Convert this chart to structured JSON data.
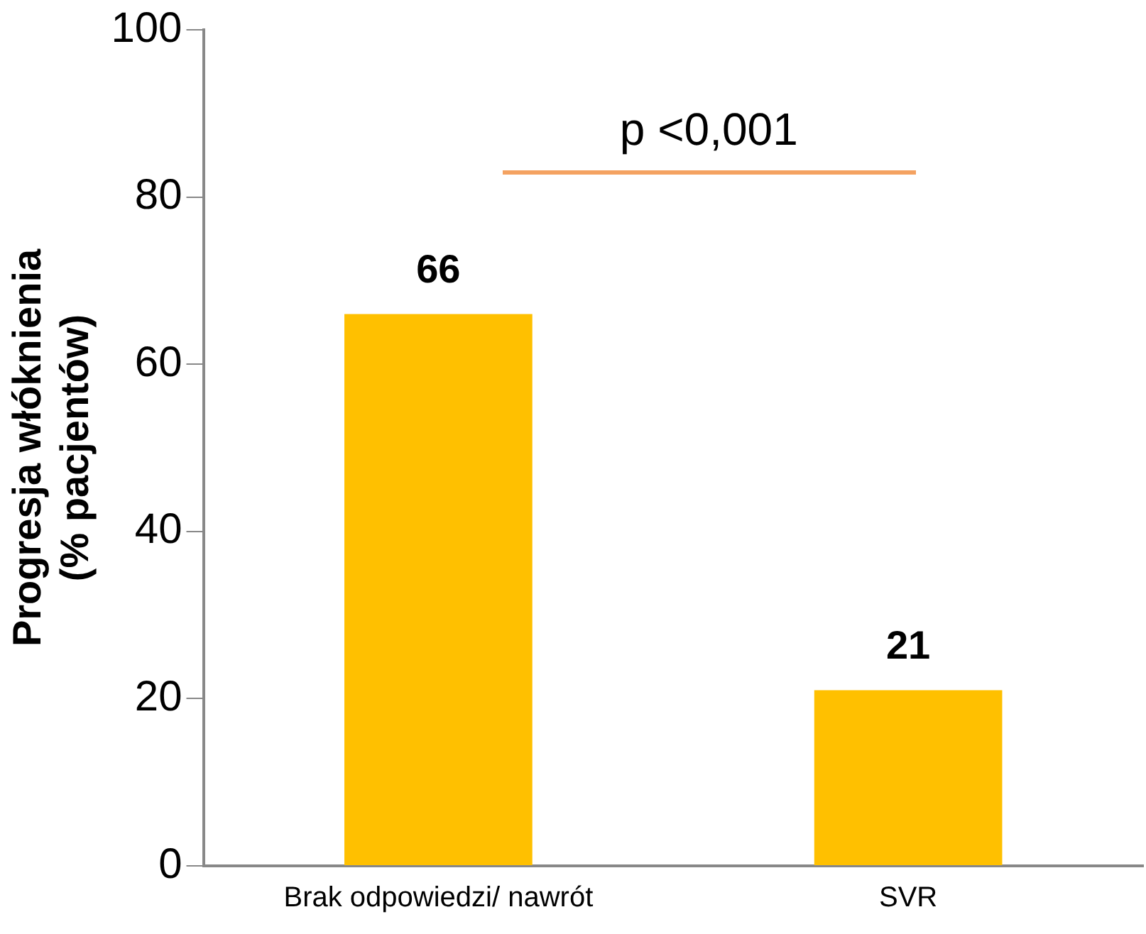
{
  "chart_data": {
    "type": "bar",
    "ylabel": "Progresja włóknienia\n(% pacjentów)",
    "categories": [
      "Brak odpowiedzi/ nawrót",
      "SVR"
    ],
    "values": [
      66,
      21
    ],
    "color": "#ffc000",
    "ylim": [
      0,
      100
    ],
    "yticks": [
      0,
      20,
      40,
      60,
      80,
      100
    ],
    "grid": false,
    "legend": false,
    "data_labels": true,
    "annotations": [
      "p <0,001"
    ]
  }
}
